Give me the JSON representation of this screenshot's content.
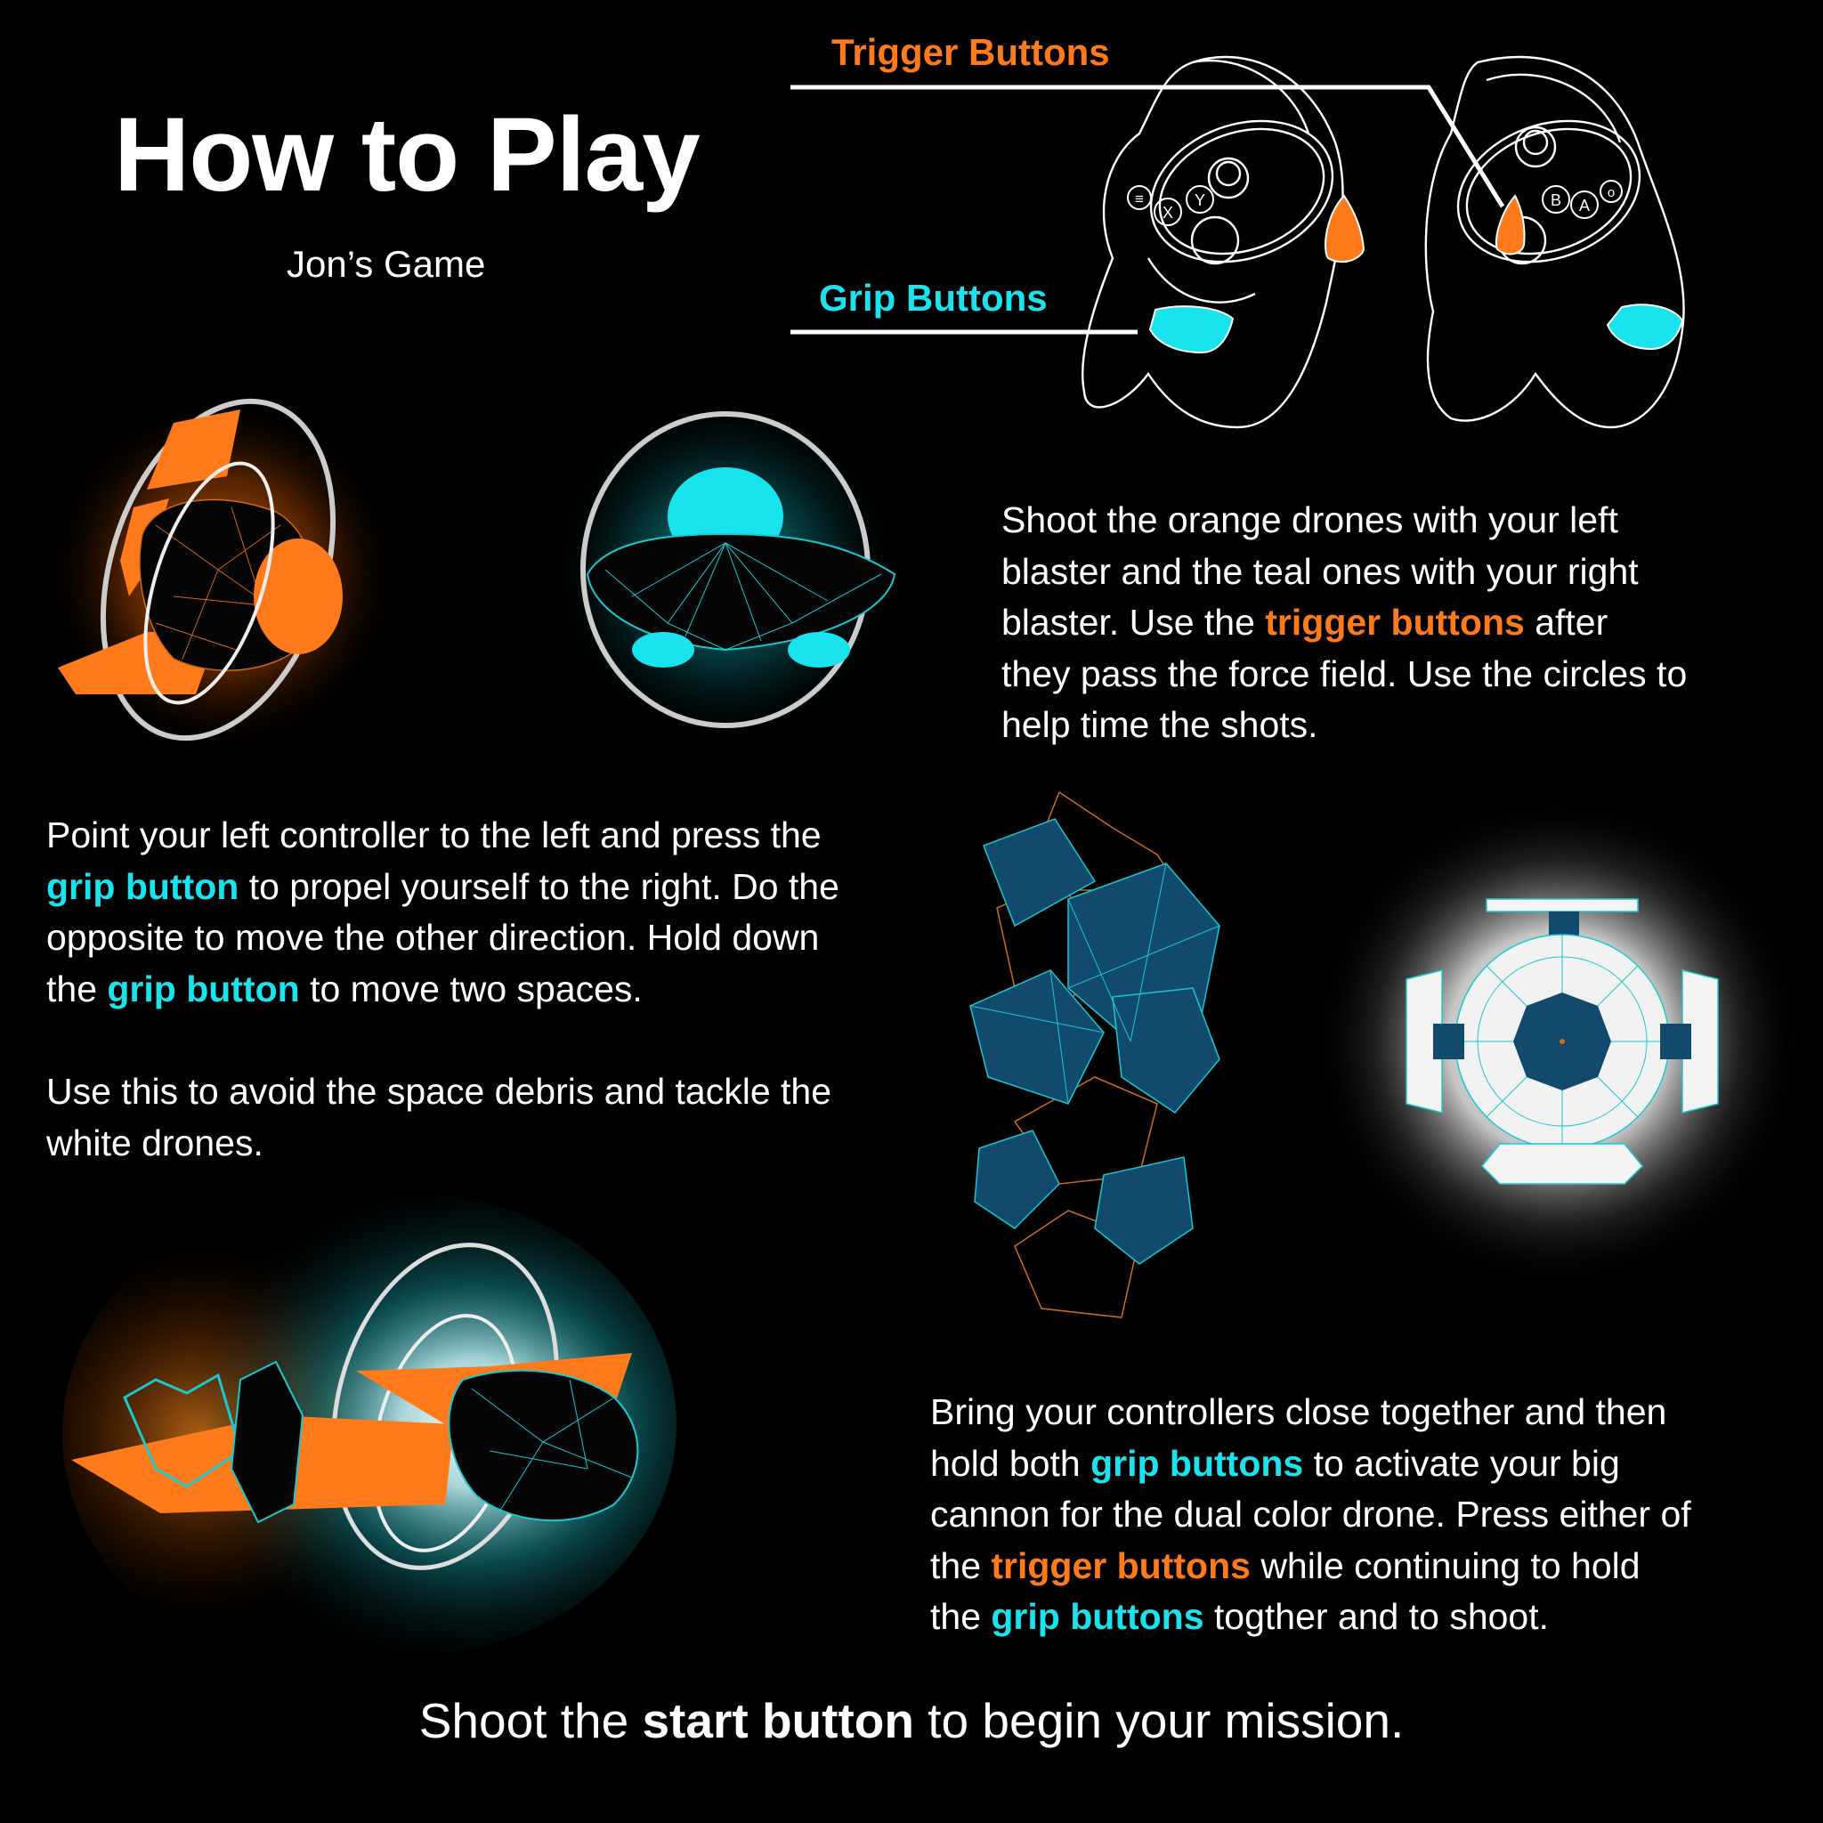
{
  "header": {
    "title": "How to Play",
    "subtitle": "Jon’s Game"
  },
  "controllers": {
    "trigger_label": "Trigger Buttons",
    "grip_label": "Grip Buttons",
    "left_buttons": [
      "≡",
      "X",
      "Y"
    ],
    "right_buttons": [
      "B",
      "A",
      "o"
    ]
  },
  "paragraphs": {
    "shoot": {
      "lines": [
        [
          "Shoot the orange drones with your left"
        ],
        [
          "blaster and the teal ones with your right"
        ],
        [
          "blaster. Use the ",
          "trigger buttons",
          " after"
        ],
        [
          "they pass the force field. Use the circles to"
        ],
        [
          "help time the shots."
        ]
      ]
    },
    "move": {
      "lines": [
        [
          "Point your left controller to the left and press the"
        ],
        [
          "grip button",
          " to propel yourself to the right. Do the"
        ],
        [
          "opposite to move the other direction. Hold down"
        ],
        [
          "the ",
          "grip button",
          " to move two spaces."
        ]
      ]
    },
    "avoid": {
      "lines": [
        [
          "Use this to avoid the space debris and tackle the"
        ],
        [
          "white drones."
        ]
      ]
    },
    "cannon": {
      "lines": [
        [
          "Bring your controllers close together and then"
        ],
        [
          "hold both ",
          "grip buttons",
          " to activate your big"
        ],
        [
          "cannon for the dual color drone. Press either of"
        ],
        [
          "the ",
          "trigger buttons",
          " while continuing to hold"
        ],
        [
          "the ",
          "grip buttons",
          " togther and to shoot."
        ]
      ]
    }
  },
  "footer": {
    "before": "Shoot the ",
    "bold": "start button",
    "after": " to begin your mission."
  },
  "colors": {
    "background": "#000000",
    "orange_accent": "#ff7a1a",
    "teal_accent": "#19e3ec",
    "debris_blue": "#124a6e",
    "text": "#ffffff"
  },
  "icons": [
    "vr-controllers-icon",
    "orange-drone-icon",
    "teal-drone-icon",
    "space-debris-icon",
    "white-drone-icon",
    "dual-color-drone-icon"
  ]
}
